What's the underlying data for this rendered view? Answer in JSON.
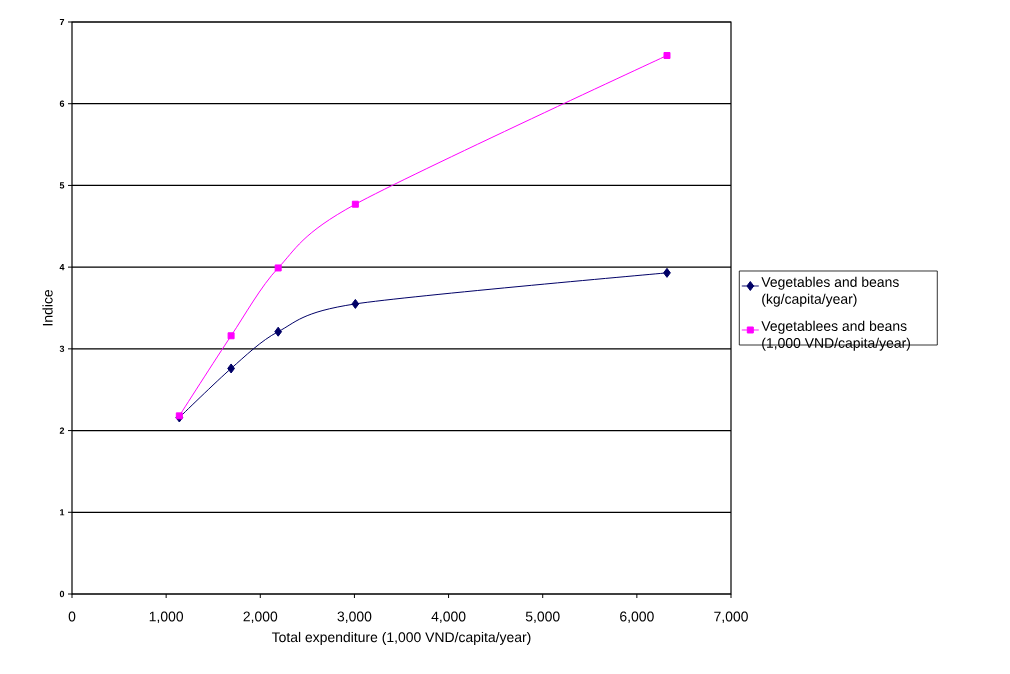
{
  "chart_data": {
    "type": "line",
    "xlabel": "Total expenditure (1,000 VND/capita/year)",
    "ylabel": "Indice",
    "xlim": [
      0,
      7000
    ],
    "ylim": [
      0,
      7
    ],
    "xticks": [
      0,
      {
        "value": 1000,
        "label": "1,000"
      },
      {
        "value": 2000,
        "label": "2,000"
      },
      {
        "value": 3000,
        "label": "3,000"
      },
      {
        "value": 4000,
        "label": "4,000"
      },
      {
        "value": 5000,
        "label": "5,000"
      },
      {
        "value": 6000,
        "label": "6,000"
      },
      {
        "value": 7000,
        "label": "7,000"
      }
    ],
    "yticks": [
      0,
      1,
      2,
      3,
      4,
      5,
      6,
      7
    ],
    "grid": "y",
    "legend": "right",
    "x": [
      1140,
      1690,
      2190,
      3010,
      6320
    ],
    "series": [
      {
        "name": "Vegetables and beans (kg/capita/year)",
        "color": "#000066",
        "marker": "diamond",
        "values": [
          2.16,
          2.76,
          3.21,
          3.55,
          3.93
        ]
      },
      {
        "name": "Vegetablees and beans (1,000 VND/capita/year)",
        "color": "#ff00ff",
        "marker": "square",
        "values": [
          2.18,
          3.16,
          3.99,
          4.77,
          6.59
        ]
      }
    ]
  }
}
